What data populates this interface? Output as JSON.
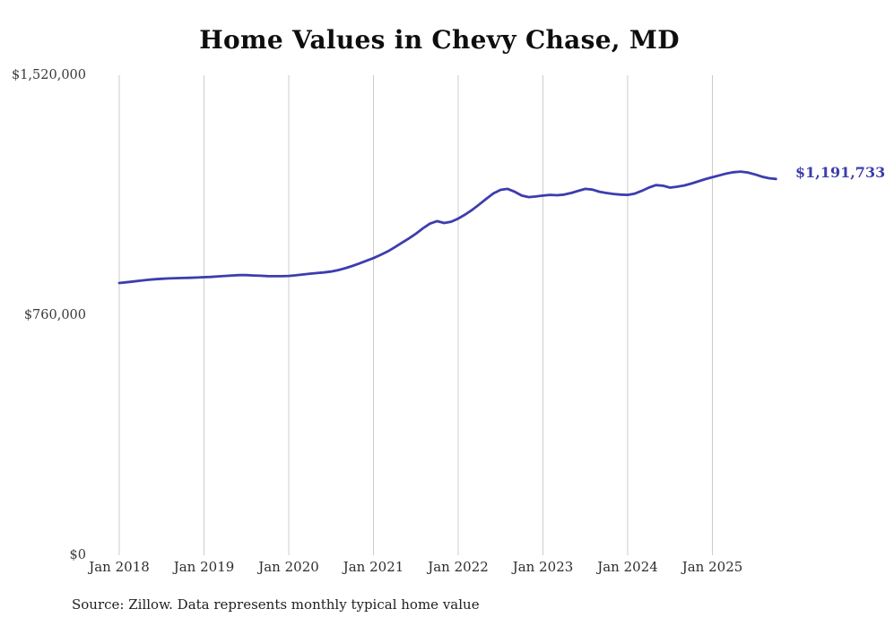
{
  "title": "Home Values in Chevy Chase, MD",
  "source": "Source: Zillow. Data represents monthly typical home value",
  "accent_color": "#3d3dae",
  "grid_color": "#cccccc",
  "chart_data": {
    "type": "line",
    "title": "Home Values in Chevy Chase, MD",
    "series_name": "Typical home value (USD)",
    "start": "2018-01",
    "frequency": "monthly",
    "values": [
      862000,
      864500,
      867000,
      869500,
      872000,
      874000,
      875500,
      876500,
      877500,
      878000,
      878500,
      879500,
      880500,
      881500,
      883000,
      884500,
      886000,
      887000,
      887000,
      886000,
      885000,
      884000,
      883500,
      883500,
      884500,
      886500,
      889000,
      891500,
      893500,
      895500,
      898500,
      903000,
      909000,
      916000,
      924000,
      932500,
      941000,
      951000,
      962000,
      975000,
      989000,
      1003000,
      1018000,
      1035000,
      1050000,
      1058000,
      1052000,
      1056000,
      1066000,
      1079000,
      1094000,
      1111000,
      1129000,
      1146000,
      1157000,
      1160000,
      1151000,
      1139000,
      1134000,
      1136000,
      1139000,
      1141000,
      1140000,
      1142000,
      1147000,
      1154000,
      1160000,
      1158000,
      1151000,
      1147000,
      1144000,
      1142000,
      1141000,
      1145000,
      1154000,
      1164000,
      1172000,
      1170000,
      1164000,
      1167000,
      1171000,
      1177000,
      1184000,
      1191000,
      1197000,
      1203000,
      1209000,
      1213000,
      1215000,
      1212000,
      1206000,
      1199000,
      1194000,
      1191733
    ],
    "latest_value": 1191733,
    "annotation": "$1,191,733",
    "ylim": [
      0,
      1520000
    ],
    "y_ticks": [
      {
        "label": "$0",
        "value": 0
      },
      {
        "label": "$760,000",
        "value": 760000
      },
      {
        "label": "$1,520,000",
        "value": 1520000
      }
    ],
    "x_ticks": [
      {
        "label": "Jan 2018",
        "index": 0
      },
      {
        "label": "Jan 2019",
        "index": 12
      },
      {
        "label": "Jan 2020",
        "index": 24
      },
      {
        "label": "Jan 2021",
        "index": 36
      },
      {
        "label": "Jan 2022",
        "index": 48
      },
      {
        "label": "Jan 2023",
        "index": 60
      },
      {
        "label": "Jan 2024",
        "index": 72
      },
      {
        "label": "Jan 2025",
        "index": 84
      }
    ],
    "grid": "vertical-only",
    "legend": "none"
  }
}
